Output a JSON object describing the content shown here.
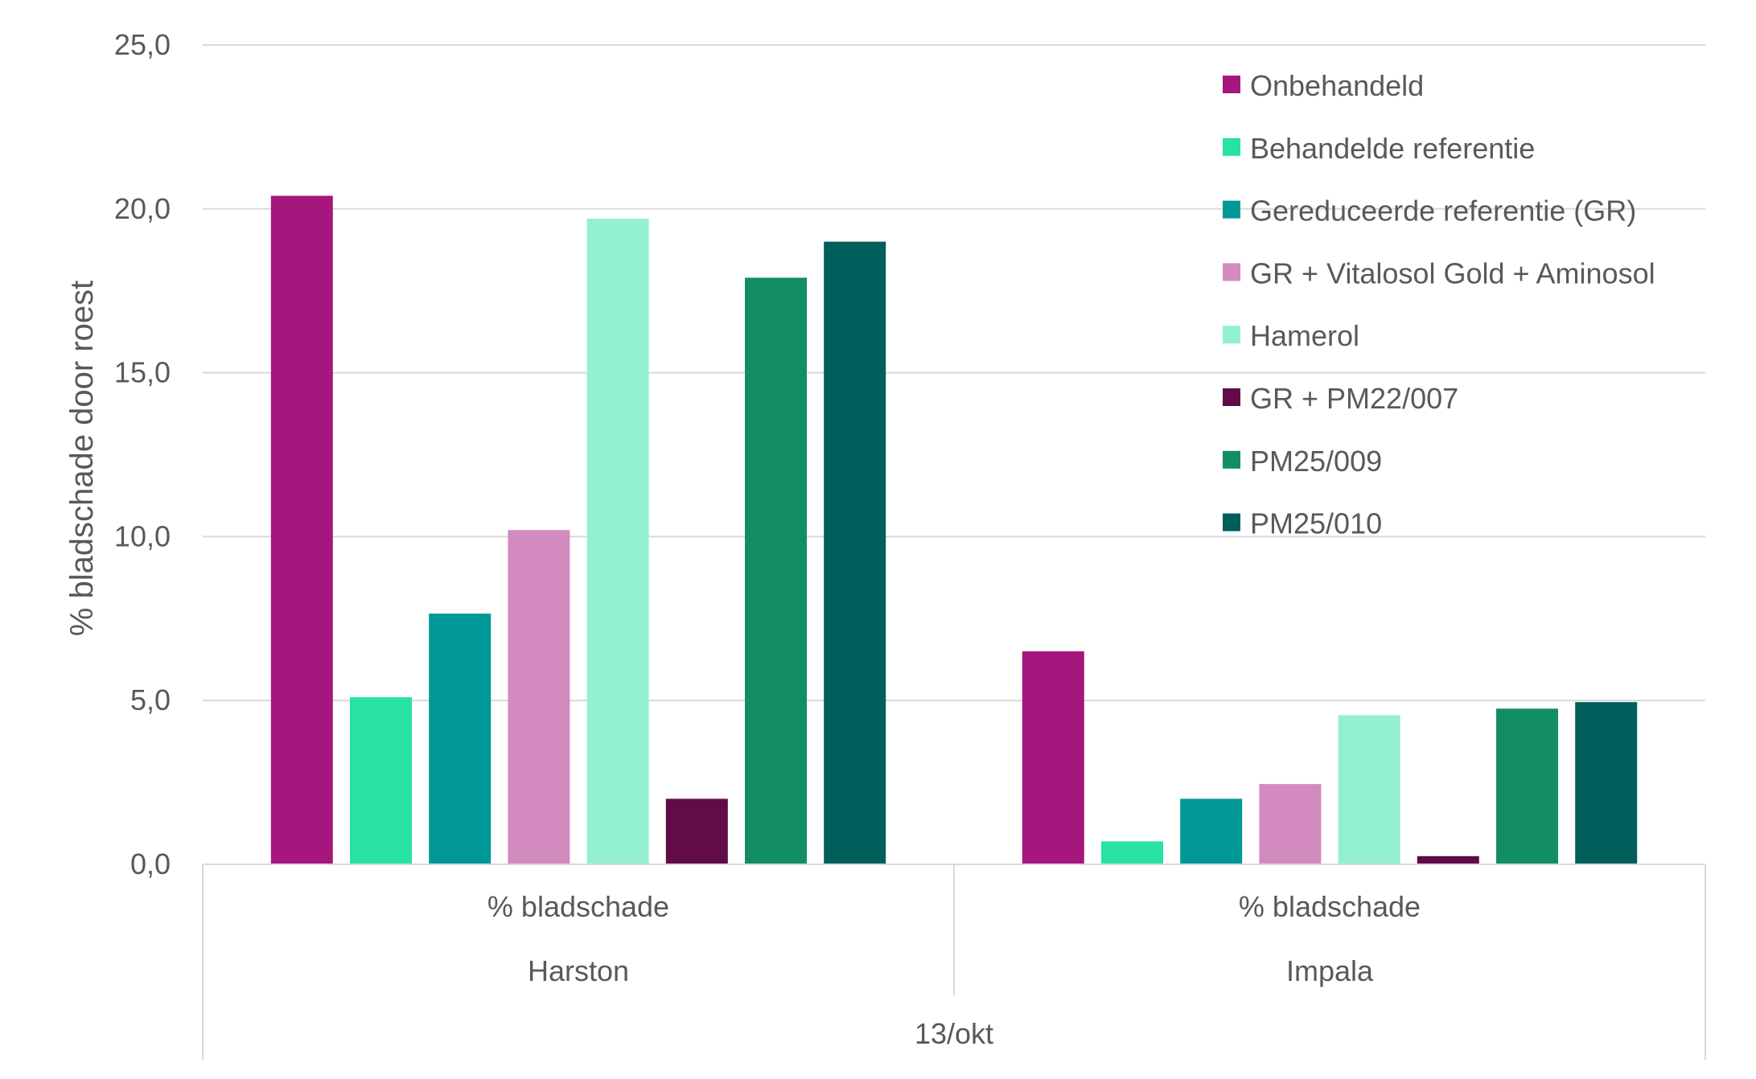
{
  "chart_data": {
    "type": "bar",
    "title": "",
    "ylabel": "% bladschade door roest",
    "xlabel": "",
    "ylim": [
      0,
      25
    ],
    "yticks": [
      "0,0",
      "5,0",
      "10,0",
      "15,0",
      "20,0",
      "25,0"
    ],
    "ytick_values": [
      0,
      5,
      10,
      15,
      20,
      25
    ],
    "grid": true,
    "legend_position": "top-right",
    "categories": [
      {
        "level1": "% bladschade",
        "level2": "Harston"
      },
      {
        "level1": "% bladschade",
        "level2": "Impala"
      }
    ],
    "top_group_label": "13/okt",
    "series": [
      {
        "name": "Onbehandeld",
        "color": "#A6177D",
        "values": [
          20.4,
          6.5
        ]
      },
      {
        "name": "Behandelde referentie",
        "color": "#27E2A4",
        "values": [
          5.1,
          0.7
        ]
      },
      {
        "name": "Gereduceerde referentie (GR)",
        "color": "#009797",
        "values": [
          7.65,
          2.0
        ]
      },
      {
        "name": "GR + Vitalosol Gold + Aminosol",
        "color": "#D38BBF",
        "values": [
          10.2,
          2.45
        ]
      },
      {
        "name": "Hamerol",
        "color": "#93F0D2",
        "values": [
          19.7,
          4.55
        ]
      },
      {
        "name": "GR + PM22/007",
        "color": "#610B48",
        "values": [
          2.0,
          0.25
        ]
      },
      {
        "name": "PM25/009",
        "color": "#138E63",
        "values": [
          17.9,
          4.75
        ]
      },
      {
        "name": "PM25/010",
        "color": "#005E5B",
        "values": [
          19.0,
          4.95
        ]
      }
    ]
  }
}
